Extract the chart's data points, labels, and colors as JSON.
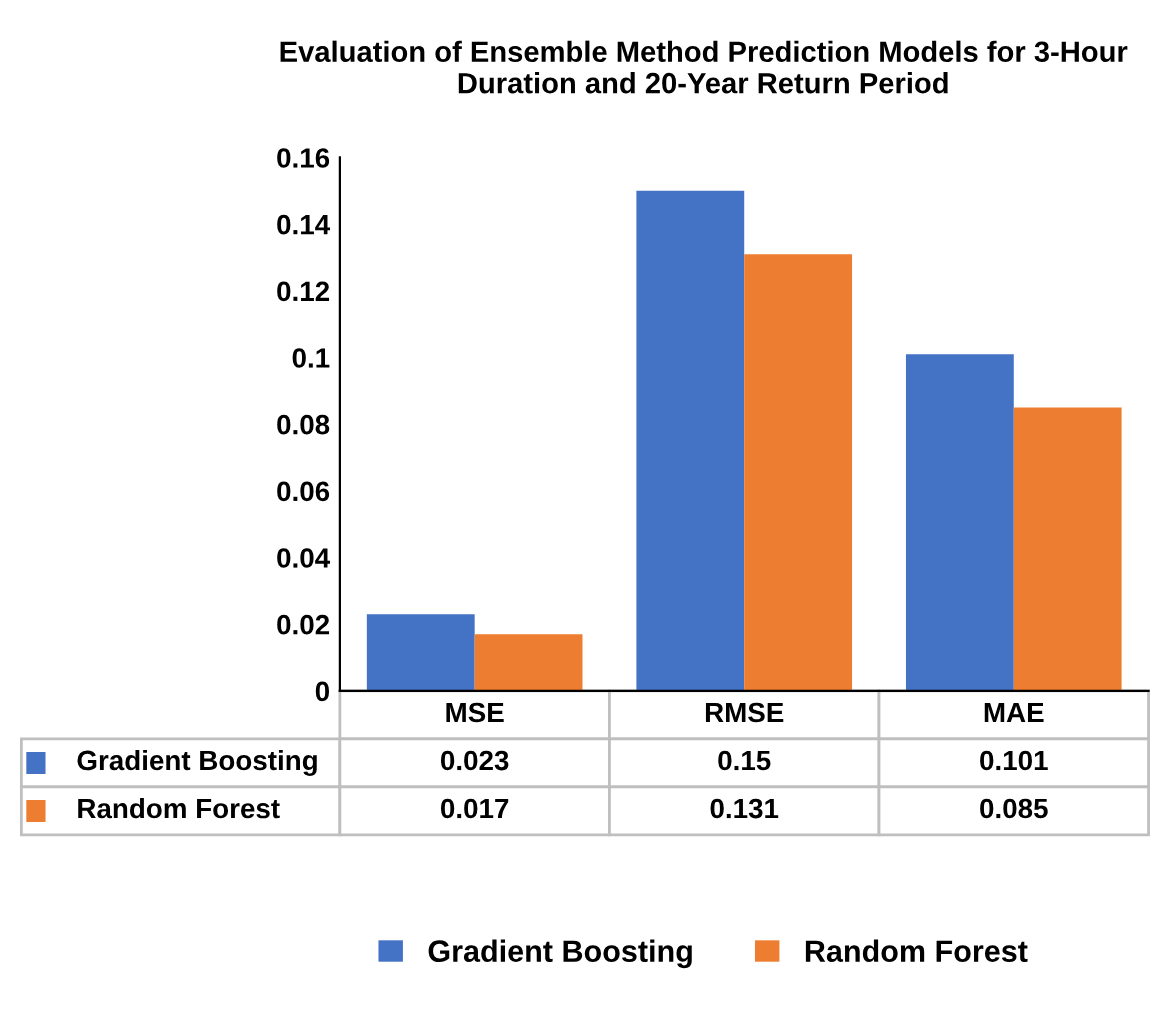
{
  "chart_data": {
    "type": "bar",
    "title": "Evaluation of Ensemble Method Prediction Models for 3-Hour Duration and 20-Year Return Period",
    "categories": [
      "MSE",
      "RMSE",
      "MAE"
    ],
    "series": [
      {
        "name": "Gradient Boosting",
        "color": "#4472c4",
        "values": [
          0.023,
          0.15,
          0.101
        ]
      },
      {
        "name": "Random Forest",
        "color": "#ed7d31",
        "values": [
          0.017,
          0.131,
          0.085
        ]
      }
    ],
    "ylim": [
      0,
      0.16
    ],
    "yticks": [
      0,
      0.02,
      0.04,
      0.06,
      0.08,
      0.1,
      0.12,
      0.14,
      0.16
    ],
    "data_labels": true,
    "legend": "bottom"
  }
}
